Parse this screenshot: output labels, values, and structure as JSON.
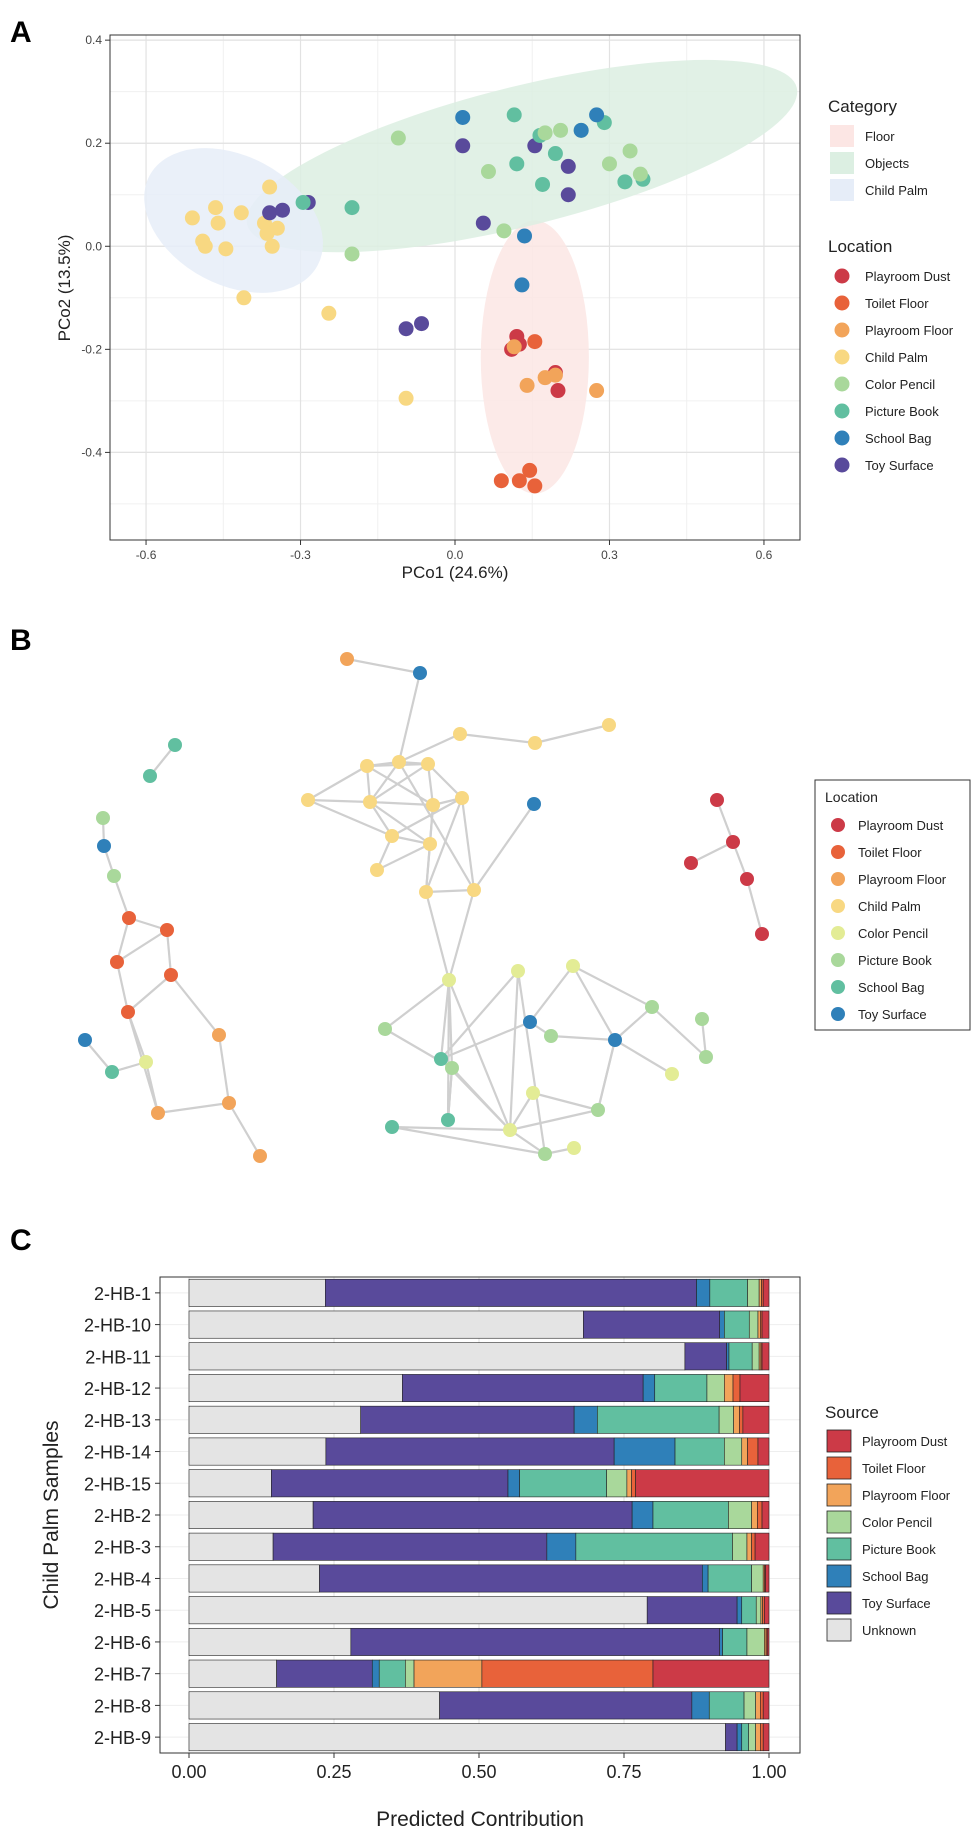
{
  "colors": {
    "Playroom Dust": "#cc3a47",
    "Toilet Floor": "#e8623a",
    "Playroom Floor": "#f2a45a",
    "Child Palm": "#f8d882",
    "Color Pencil": "#a9d89b",
    "Color Pencil B": "#e3ec95",
    "Picture Book": "#61bfa0",
    "Picture Book B": "#a9d89b",
    "School Bag": "#2f80b9",
    "School Bag B": "#61bfa0",
    "Toy Surface": "#594a9b",
    "Toy Surface B": "#2f80b9",
    "Unknown": "#e4e4e4",
    "Floor": "#fce6e4",
    "Objects": "#dcefe2",
    "Child Palm Ellipse": "#e6edf8"
  },
  "panels": {
    "a": "A",
    "b": "B",
    "c": "C"
  },
  "chart_data": [
    {
      "type": "scatter",
      "title": "",
      "xlabel": "PCo1 (24.6%)",
      "ylabel": "PCo2 (13.5%)",
      "xlim": [
        -0.67,
        0.67
      ],
      "ylim": [
        -0.57,
        0.41
      ],
      "xticks": [
        "-0.6",
        "-0.3",
        "0.0",
        "0.3",
        "0.6"
      ],
      "xtick_values": [
        -0.6,
        -0.3,
        0.0,
        0.3,
        0.6
      ],
      "yticks": [
        "0.4",
        "0.2",
        "0.0",
        "-0.2",
        "-0.4"
      ],
      "ytick_values": [
        0.4,
        0.2,
        0.0,
        -0.2,
        -0.4
      ],
      "legend_category_title": "Category",
      "legend_category": [
        "Floor",
        "Objects",
        "Child Palm"
      ],
      "legend_location_title": "Location",
      "legend_location": [
        "Playroom Dust",
        "Toilet Floor",
        "Playroom Floor",
        "Child Palm",
        "Color Pencil",
        "Picture Book",
        "School Bag",
        "Toy Surface"
      ],
      "ellipses": [
        {
          "name": "Floor",
          "cx": 0.155,
          "cy": -0.215,
          "rx": 0.105,
          "ry": 0.265,
          "angle": 0
        },
        {
          "name": "Objects",
          "cx": 0.13,
          "cy": 0.175,
          "rx": 0.55,
          "ry": 0.135,
          "angle": 14
        },
        {
          "name": "Child Palm",
          "cx": -0.43,
          "cy": 0.05,
          "rx": 0.185,
          "ry": 0.125,
          "angle": -28
        }
      ],
      "points": [
        {
          "loc": "Child Palm",
          "x": -0.51,
          "y": 0.055
        },
        {
          "loc": "Child Palm",
          "x": -0.49,
          "y": 0.01
        },
        {
          "loc": "Child Palm",
          "x": -0.485,
          "y": 0.0
        },
        {
          "loc": "Child Palm",
          "x": -0.465,
          "y": 0.075
        },
        {
          "loc": "Child Palm",
          "x": -0.46,
          "y": 0.045
        },
        {
          "loc": "Child Palm",
          "x": -0.445,
          "y": -0.005
        },
        {
          "loc": "Child Palm",
          "x": -0.415,
          "y": 0.065
        },
        {
          "loc": "Child Palm",
          "x": -0.41,
          "y": -0.1
        },
        {
          "loc": "Child Palm",
          "x": -0.37,
          "y": 0.045
        },
        {
          "loc": "Child Palm",
          "x": -0.365,
          "y": 0.025
        },
        {
          "loc": "Child Palm",
          "x": -0.355,
          "y": 0.0
        },
        {
          "loc": "Child Palm",
          "x": -0.36,
          "y": 0.115
        },
        {
          "loc": "Child Palm",
          "x": -0.345,
          "y": 0.035
        },
        {
          "loc": "Child Palm",
          "x": -0.245,
          "y": -0.13
        },
        {
          "loc": "Child Palm",
          "x": -0.095,
          "y": -0.295
        },
        {
          "loc": "Toy Surface",
          "x": -0.36,
          "y": 0.065
        },
        {
          "loc": "Toy Surface",
          "x": -0.335,
          "y": 0.07
        },
        {
          "loc": "Toy Surface",
          "x": -0.285,
          "y": 0.085
        },
        {
          "loc": "Toy Surface",
          "x": -0.095,
          "y": -0.16
        },
        {
          "loc": "Toy Surface",
          "x": -0.065,
          "y": -0.15
        },
        {
          "loc": "Toy Surface",
          "x": 0.015,
          "y": 0.195
        },
        {
          "loc": "Toy Surface",
          "x": 0.055,
          "y": 0.045
        },
        {
          "loc": "Toy Surface",
          "x": 0.155,
          "y": 0.195
        },
        {
          "loc": "Toy Surface",
          "x": 0.22,
          "y": 0.155
        },
        {
          "loc": "Toy Surface",
          "x": 0.22,
          "y": 0.1
        },
        {
          "loc": "Picture Book",
          "x": -0.295,
          "y": 0.085
        },
        {
          "loc": "Picture Book",
          "x": -0.2,
          "y": 0.075
        },
        {
          "loc": "Picture Book",
          "x": 0.115,
          "y": 0.255
        },
        {
          "loc": "Picture Book",
          "x": 0.12,
          "y": 0.16
        },
        {
          "loc": "Picture Book",
          "x": 0.165,
          "y": 0.215
        },
        {
          "loc": "Picture Book",
          "x": 0.17,
          "y": 0.12
        },
        {
          "loc": "Picture Book",
          "x": 0.195,
          "y": 0.18
        },
        {
          "loc": "Picture Book",
          "x": 0.29,
          "y": 0.24
        },
        {
          "loc": "Picture Book",
          "x": 0.33,
          "y": 0.125
        },
        {
          "loc": "Picture Book",
          "x": 0.365,
          "y": 0.13
        },
        {
          "loc": "Color Pencil",
          "x": -0.2,
          "y": -0.015
        },
        {
          "loc": "Color Pencil",
          "x": -0.11,
          "y": 0.21
        },
        {
          "loc": "Color Pencil",
          "x": 0.065,
          "y": 0.145
        },
        {
          "loc": "Color Pencil",
          "x": 0.095,
          "y": 0.03
        },
        {
          "loc": "Color Pencil",
          "x": 0.175,
          "y": 0.22
        },
        {
          "loc": "Color Pencil",
          "x": 0.205,
          "y": 0.225
        },
        {
          "loc": "Color Pencil",
          "x": 0.245,
          "y": 0.225
        },
        {
          "loc": "Color Pencil",
          "x": 0.3,
          "y": 0.16
        },
        {
          "loc": "Color Pencil",
          "x": 0.34,
          "y": 0.185
        },
        {
          "loc": "Color Pencil",
          "x": 0.36,
          "y": 0.14
        },
        {
          "loc": "School Bag",
          "x": 0.015,
          "y": 0.25
        },
        {
          "loc": "School Bag",
          "x": 0.135,
          "y": 0.02
        },
        {
          "loc": "School Bag",
          "x": 0.13,
          "y": -0.075
        },
        {
          "loc": "School Bag",
          "x": 0.245,
          "y": 0.225
        },
        {
          "loc": "School Bag",
          "x": 0.275,
          "y": 0.255
        },
        {
          "loc": "Playroom Dust",
          "x": 0.11,
          "y": -0.2
        },
        {
          "loc": "Playroom Dust",
          "x": 0.12,
          "y": -0.175
        },
        {
          "loc": "Playroom Dust",
          "x": 0.125,
          "y": -0.19
        },
        {
          "loc": "Playroom Dust",
          "x": 0.195,
          "y": -0.245
        },
        {
          "loc": "Playroom Dust",
          "x": 0.2,
          "y": -0.28
        },
        {
          "loc": "Toilet Floor",
          "x": 0.09,
          "y": -0.455
        },
        {
          "loc": "Toilet Floor",
          "x": 0.125,
          "y": -0.455
        },
        {
          "loc": "Toilet Floor",
          "x": 0.145,
          "y": -0.435
        },
        {
          "loc": "Toilet Floor",
          "x": 0.155,
          "y": -0.465
        },
        {
          "loc": "Toilet Floor",
          "x": 0.155,
          "y": -0.185
        },
        {
          "loc": "Playroom Floor",
          "x": 0.115,
          "y": -0.195
        },
        {
          "loc": "Playroom Floor",
          "x": 0.14,
          "y": -0.27
        },
        {
          "loc": "Playroom Floor",
          "x": 0.175,
          "y": -0.255
        },
        {
          "loc": "Playroom Floor",
          "x": 0.195,
          "y": -0.25
        },
        {
          "loc": "Playroom Floor",
          "x": 0.275,
          "y": -0.28
        }
      ]
    },
    {
      "type": "network",
      "legend_title": "Location",
      "legend": [
        "Playroom Dust",
        "Toilet Floor",
        "Playroom Floor",
        "Child Palm",
        "Color Pencil",
        "Picture Book",
        "School Bag",
        "Toy Surface"
      ]
    },
    {
      "type": "bar",
      "orientation": "horizontal",
      "stacked": true,
      "xlabel": "Predicted Contribution",
      "ylabel": "Child Palm Samples",
      "xlim": [
        0,
        1
      ],
      "xticks": [
        "0.00",
        "0.25",
        "0.50",
        "0.75",
        "1.00"
      ],
      "xtick_values": [
        0,
        0.25,
        0.5,
        0.75,
        1.0
      ],
      "legend_title": "Source",
      "legend": [
        "Playroom Dust",
        "Toilet Floor",
        "Playroom Floor",
        "Color Pencil",
        "Picture Book",
        "School Bag",
        "Toy Surface",
        "Unknown"
      ],
      "stack_order": [
        "Unknown",
        "Toy Surface",
        "School Bag",
        "Picture Book",
        "Color Pencil",
        "Playroom Floor",
        "Toilet Floor",
        "Playroom Dust"
      ],
      "categories": [
        "2-HB-1",
        "2-HB-10",
        "2-HB-11",
        "2-HB-12",
        "2-HB-13",
        "2-HB-14",
        "2-HB-15",
        "2-HB-2",
        "2-HB-3",
        "2-HB-4",
        "2-HB-5",
        "2-HB-6",
        "2-HB-7",
        "2-HB-8",
        "2-HB-9"
      ],
      "series": [
        {
          "name": "Unknown",
          "values": [
            0.235,
            0.68,
            0.855,
            0.368,
            0.296,
            0.236,
            0.142,
            0.214,
            0.145,
            0.225,
            0.79,
            0.279,
            0.151,
            0.432,
            0.925
          ]
        },
        {
          "name": "Toy Surface",
          "values": [
            0.64,
            0.235,
            0.072,
            0.415,
            0.368,
            0.497,
            0.408,
            0.55,
            0.472,
            0.66,
            0.155,
            0.636,
            0.165,
            0.435,
            0.02
          ]
        },
        {
          "name": "School Bag",
          "values": [
            0.023,
            0.008,
            0.004,
            0.02,
            0.04,
            0.105,
            0.02,
            0.036,
            0.05,
            0.01,
            0.008,
            0.005,
            0.012,
            0.03,
            0.008
          ]
        },
        {
          "name": "Picture Book",
          "values": [
            0.065,
            0.043,
            0.04,
            0.09,
            0.21,
            0.085,
            0.15,
            0.13,
            0.27,
            0.075,
            0.025,
            0.042,
            0.045,
            0.06,
            0.012
          ]
        },
        {
          "name": "Color Pencil",
          "values": [
            0.02,
            0.015,
            0.012,
            0.03,
            0.025,
            0.03,
            0.035,
            0.04,
            0.025,
            0.02,
            0.008,
            0.03,
            0.015,
            0.02,
            0.012
          ]
        },
        {
          "name": "Playroom Floor",
          "values": [
            0.004,
            0.004,
            0.003,
            0.015,
            0.01,
            0.01,
            0.008,
            0.01,
            0.008,
            0.002,
            0.003,
            0.003,
            0.117,
            0.008,
            0.008
          ]
        },
        {
          "name": "Toilet Floor",
          "values": [
            0.003,
            0.003,
            0.002,
            0.012,
            0.006,
            0.018,
            0.007,
            0.008,
            0.006,
            0.002,
            0.003,
            0.002,
            0.295,
            0.005,
            0.005
          ]
        },
        {
          "name": "Playroom Dust",
          "values": [
            0.01,
            0.012,
            0.012,
            0.05,
            0.045,
            0.019,
            0.23,
            0.012,
            0.024,
            0.006,
            0.008,
            0.003,
            0.2,
            0.01,
            0.01
          ]
        }
      ]
    }
  ]
}
